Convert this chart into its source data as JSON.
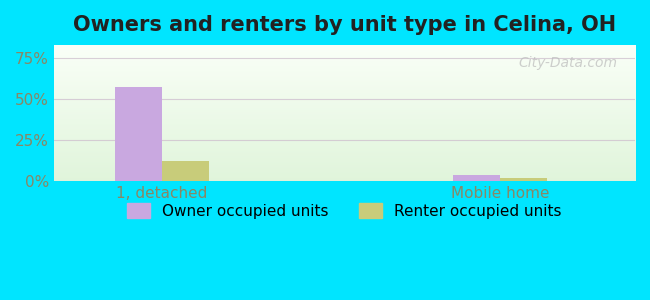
{
  "title": "Owners and renters by unit type in Celina, OH",
  "categories": [
    "1, detached",
    "Mobile home"
  ],
  "owner_values": [
    57.5,
    3.5
  ],
  "renter_values": [
    12.0,
    1.5
  ],
  "owner_color": "#c9a8e0",
  "renter_color": "#c8cc7a",
  "background_outer": "#00e5ff",
  "background_inner_top": "#f5fff5",
  "background_inner_bottom": "#e8f5e0",
  "yticks": [
    0,
    25,
    75
  ],
  "ylim": [
    0,
    83
  ],
  "bar_width": 0.35,
  "title_fontsize": 15,
  "tick_fontsize": 11,
  "legend_fontsize": 11,
  "watermark": "City-Data.com",
  "ylabel_color": "#888866",
  "axis_color": "#aaaaaa"
}
